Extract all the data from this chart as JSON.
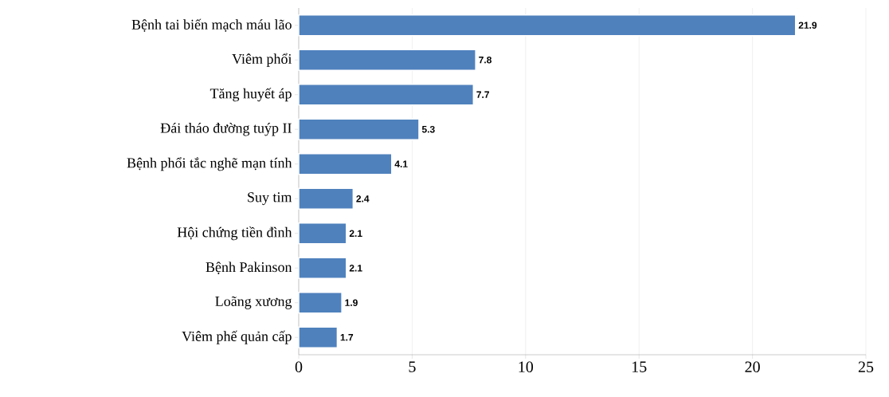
{
  "chart_data": {
    "type": "bar",
    "orientation": "horizontal",
    "categories": [
      "Bệnh tai biến mạch máu lão",
      "Viêm phổi",
      "Tăng huyết áp",
      "Đái tháo đường tuýp II",
      "Bệnh phổi tắc nghẽ mạn tính",
      "Suy tim",
      "Hội chứng tiền đình",
      "Bệnh Pakinson",
      "Loãng xương",
      "Viêm phế quản cấp"
    ],
    "values": [
      21.9,
      7.8,
      7.7,
      5.3,
      4.1,
      2.4,
      2.1,
      2.1,
      1.9,
      1.7
    ],
    "color": "#4f81bd",
    "xlim": [
      0,
      25
    ],
    "xticks": [
      0,
      5,
      10,
      15,
      20,
      25
    ],
    "grid": "x",
    "data_labels": true
  }
}
